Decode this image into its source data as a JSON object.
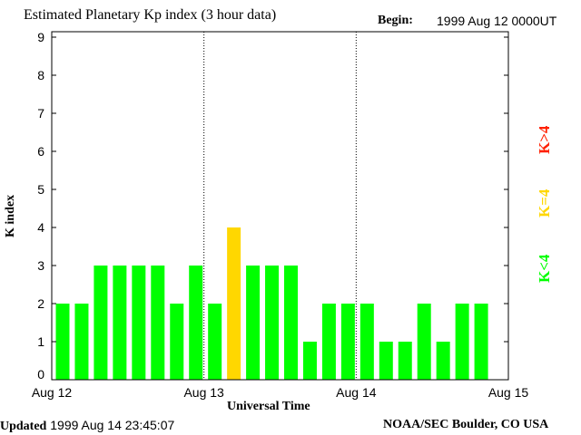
{
  "header": {
    "title": "Estimated Planetary Kp index (3 hour data)",
    "begin_label": "Begin:",
    "begin_value": "1999 Aug 12 0000UT"
  },
  "footer": {
    "updated_label": "Updated",
    "updated_value": "1999 Aug 14 23:45:07",
    "source": "NOAA/SEC Boulder, CO USA"
  },
  "legend": [
    {
      "label": "K<4",
      "color": "#00ff00"
    },
    {
      "label": "K=4",
      "color": "#ffd700"
    },
    {
      "label": "K>4",
      "color": "#ff2000"
    }
  ],
  "chart_data": {
    "type": "bar",
    "title": "Estimated Planetary Kp index (3 hour data)",
    "xlabel": "Universal Time",
    "ylabel": "K index",
    "ylim": [
      0,
      9
    ],
    "yticks": [
      "0",
      "1",
      "2",
      "3",
      "4",
      "5",
      "6",
      "7",
      "8",
      "9"
    ],
    "xticks": [
      "Aug 12",
      "Aug 13",
      "Aug 14",
      "Aug 15"
    ],
    "slots": 24,
    "values": [
      2,
      2,
      3,
      3,
      3,
      3,
      2,
      3,
      2,
      4,
      3,
      3,
      3,
      1,
      2,
      2,
      2,
      1,
      1,
      2,
      1,
      2,
      2
    ],
    "colors": {
      "low": "#00ff00",
      "equal": "#ffd700",
      "high": "#ff2000"
    }
  }
}
